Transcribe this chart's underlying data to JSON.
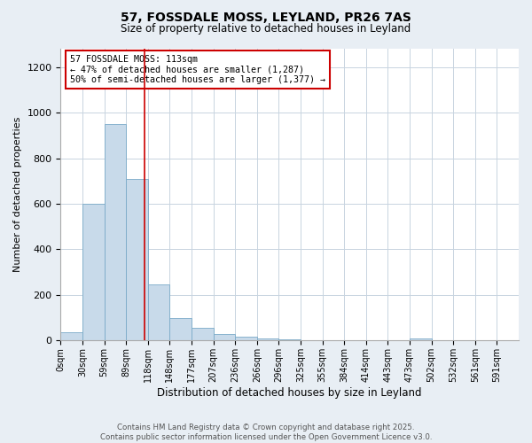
{
  "title": "57, FOSSDALE MOSS, LEYLAND, PR26 7AS",
  "subtitle": "Size of property relative to detached houses in Leyland",
  "xlabel": "Distribution of detached houses by size in Leyland",
  "ylabel": "Number of detached properties",
  "bin_labels": [
    "0sqm",
    "30sqm",
    "59sqm",
    "89sqm",
    "118sqm",
    "148sqm",
    "177sqm",
    "207sqm",
    "236sqm",
    "266sqm",
    "296sqm",
    "325sqm",
    "355sqm",
    "384sqm",
    "414sqm",
    "443sqm",
    "473sqm",
    "502sqm",
    "532sqm",
    "561sqm",
    "591sqm"
  ],
  "bar_values": [
    35,
    600,
    950,
    710,
    245,
    98,
    55,
    30,
    18,
    8,
    5,
    3,
    2,
    1,
    1,
    0,
    8,
    0,
    0,
    0,
    0
  ],
  "bar_color": "#c8daea",
  "bar_edge_color": "#7aaac8",
  "vline_color": "#cc0000",
  "annotation_text": "57 FOSSDALE MOSS: 113sqm\n← 47% of detached houses are smaller (1,287)\n50% of semi-detached houses are larger (1,377) →",
  "annotation_box_color": "#ffffff",
  "annotation_box_edge": "#cc0000",
  "ylim": [
    0,
    1280
  ],
  "yticks": [
    0,
    200,
    400,
    600,
    800,
    1000,
    1200
  ],
  "footer_line1": "Contains HM Land Registry data © Crown copyright and database right 2025.",
  "footer_line2": "Contains public sector information licensed under the Open Government Licence v3.0.",
  "bg_color": "#e8eef4",
  "plot_bg_color": "#ffffff",
  "grid_color": "#c8d4e0"
}
